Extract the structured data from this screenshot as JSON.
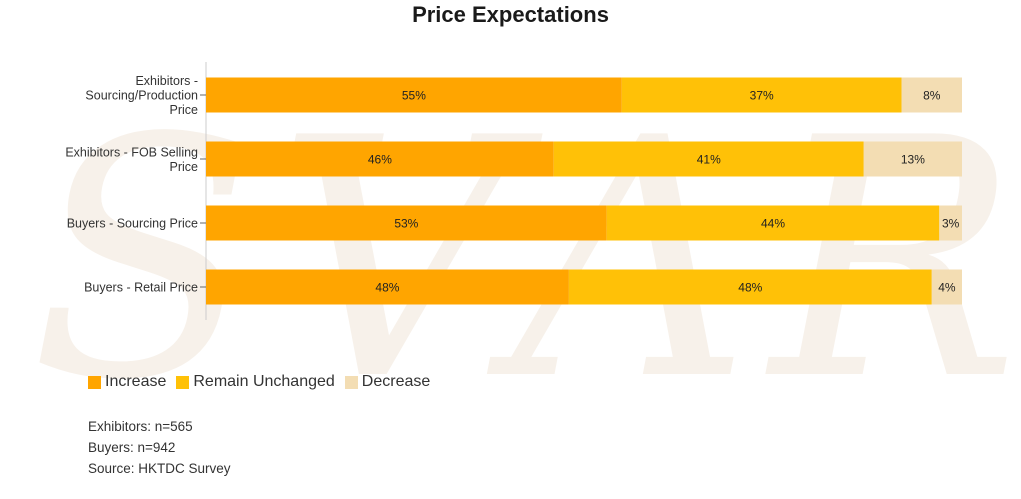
{
  "chart_data": {
    "type": "bar",
    "orientation": "horizontal",
    "stacked": true,
    "title": "Price Expectations",
    "categories": [
      "Exhibitors - Sourcing/Production Price",
      "Exhibitors - FOB Selling Price",
      "Buyers - Sourcing Price",
      "Buyers - Retail Price"
    ],
    "category_lines": [
      [
        "Exhibitors -",
        "Sourcing/Production",
        "Price"
      ],
      [
        "Exhibitors - FOB Selling",
        "Price"
      ],
      [
        "Buyers - Sourcing Price"
      ],
      [
        "Buyers - Retail Price"
      ]
    ],
    "series": [
      {
        "name": "Increase",
        "color": "#ffa500",
        "values": [
          55,
          46,
          53,
          48
        ]
      },
      {
        "name": "Remain Unchanged",
        "color": "#ffc107",
        "values": [
          37,
          41,
          44,
          48
        ]
      },
      {
        "name": "Decrease",
        "color": "#f3ddb3",
        "values": [
          8,
          13,
          3,
          4
        ]
      }
    ],
    "value_suffix": "%",
    "xlim": [
      0,
      100
    ],
    "legend_position": "bottom-left",
    "grid": false
  },
  "notes": {
    "exhibitors": "Exhibitors: n=565",
    "buyers": "Buyers: n=942",
    "source": "Source: HKTDC Survey"
  },
  "watermark": "SVAR"
}
